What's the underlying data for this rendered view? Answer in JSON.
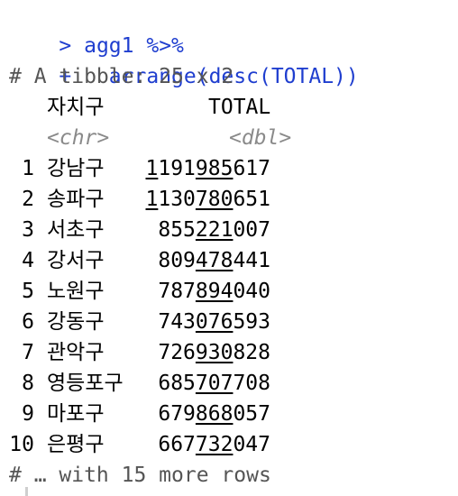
{
  "console": {
    "commands": [
      {
        "prompt": ">",
        "code": "agg1 %>%"
      },
      {
        "prompt": "+",
        "code": "  arrange(desc(TOTAL))"
      }
    ],
    "tibble_header": "# A tibble: 25 x 2",
    "columns": [
      {
        "name": "자치구",
        "type": "<chr>"
      },
      {
        "name": "TOTAL",
        "type": "<dbl>"
      }
    ],
    "rows": [
      {
        "index": "1",
        "district": "강남구",
        "total": "1191985617"
      },
      {
        "index": "2",
        "district": "송파구",
        "total": "1130780651"
      },
      {
        "index": "3",
        "district": "서초구",
        "total": "855221007"
      },
      {
        "index": "4",
        "district": "강서구",
        "total": "809478441"
      },
      {
        "index": "5",
        "district": "노원구",
        "total": "787894040"
      },
      {
        "index": "6",
        "district": "강동구",
        "total": "743076593"
      },
      {
        "index": "7",
        "district": "관악구",
        "total": "726930828"
      },
      {
        "index": "8",
        "district": "영등포구",
        "total": "685707708"
      },
      {
        "index": "9",
        "district": "마포구",
        "total": "679868057"
      },
      {
        "index": "10",
        "district": "은평구",
        "total": "667732047"
      }
    ],
    "footer": "# … with 15 more rows"
  },
  "colors": {
    "input_text": "#1f3ecf",
    "comment_text": "#555555",
    "type_text": "#8a8a8a",
    "background": "#ffffff"
  }
}
